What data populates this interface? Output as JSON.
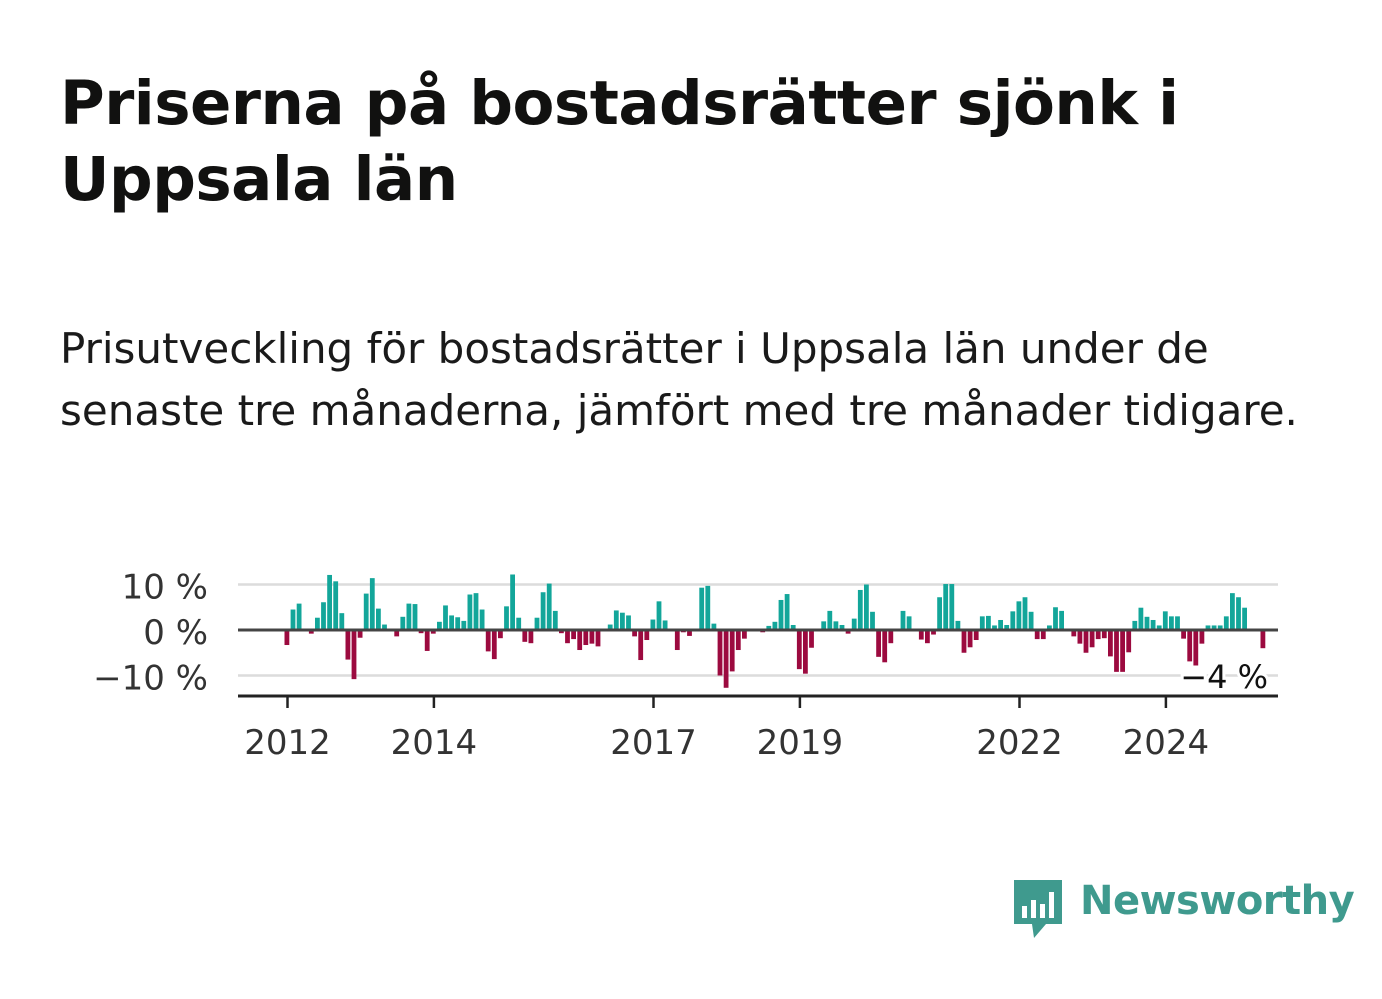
{
  "title": "Priserna på bostadsrätter sjönk i Uppsala län",
  "subtitle": "Prisutveckling för bostadsrätter i Uppsala län under de senaste tre månaderna, jämfört med tre månader tidigare.",
  "brand": {
    "name": "Newsworthy",
    "color": "#3f9a8e"
  },
  "colors": {
    "positive": "#13a69a",
    "negative": "#9c0a3f",
    "grid": "#dcdcdc",
    "baseline": "#444444"
  },
  "chart_data": {
    "type": "bar",
    "title": "Priserna på bostadsrätter sjönk i Uppsala län",
    "subtitle": "Prisutveckling för bostadsrätter i Uppsala län under de senaste tre månaderna, jämfört med tre månader tidigare.",
    "xlabel": "",
    "ylabel": "",
    "unit": "%",
    "ylim": [
      -14,
      12
    ],
    "yticks": [
      10,
      0,
      -10
    ],
    "ytick_labels": [
      "10 %",
      "0 %",
      "−10 %"
    ],
    "xticks": [
      2012,
      2014,
      2017,
      2019,
      2022,
      2024
    ],
    "xtick_labels": [
      "2012",
      "2014",
      "2017",
      "2019",
      "2022",
      "2024"
    ],
    "x_start": "2012-01",
    "grid": true,
    "last_value_label": "−4 %",
    "values": [
      -3.3,
      4.5,
      5.8,
      0,
      -0.8,
      2.7,
      6.1,
      12.1,
      10.7,
      3.7,
      -6.5,
      -10.8,
      -1.7,
      8.0,
      11.4,
      4.7,
      1.2,
      0,
      -1.4,
      2.9,
      5.8,
      5.7,
      -0.7,
      -4.6,
      -0.8,
      1.8,
      5.4,
      3.2,
      2.8,
      2.0,
      7.8,
      8.1,
      4.5,
      -4.7,
      -6.4,
      -1.8,
      5.2,
      12.2,
      2.7,
      -2.6,
      -2.9,
      2.7,
      8.3,
      10.2,
      4.2,
      -0.7,
      -2.9,
      -2.0,
      -4.4,
      -3.3,
      -3.0,
      -3.6,
      0,
      1.2,
      4.3,
      3.8,
      3.2,
      -1.4,
      -6.6,
      -2.2,
      2.3,
      6.3,
      2.1,
      0,
      -4.4,
      -0.5,
      -1.3,
      0,
      9.3,
      9.7,
      1.4,
      -10.0,
      -12.7,
      -9.1,
      -4.4,
      -1.9,
      0,
      0,
      -0.5,
      0.9,
      1.8,
      6.6,
      7.9,
      1.1,
      -8.6,
      -9.6,
      -3.9,
      0,
      1.9,
      4.2,
      1.9,
      1.1,
      -0.8,
      2.5,
      8.8,
      10.0,
      4.0,
      -5.9,
      -7.1,
      -2.9,
      0,
      4.2,
      3.0,
      0,
      -2.1,
      -2.9,
      -1.0,
      7.2,
      10.1,
      10.1,
      2.0,
      -5.0,
      -3.8,
      -2.2,
      3.0,
      3.1,
      1.0,
      2.2,
      1.1,
      4.1,
      6.3,
      7.2,
      4.0,
      -2.0,
      -2.0,
      1.0,
      5.0,
      4.2,
      0,
      -1.4,
      -3.0,
      -5.0,
      -3.8,
      -2.0,
      -1.8,
      -5.8,
      -9.2,
      -9.2,
      -4.9,
      2.0,
      4.9,
      2.9,
      2.2,
      1.0,
      4.1,
      3.0,
      3.0,
      -1.9,
      -6.9,
      -7.8,
      -3.0,
      1.0,
      1.0,
      1.0,
      3.0,
      8.1,
      7.2,
      4.9,
      0,
      0,
      -4.0
    ]
  }
}
